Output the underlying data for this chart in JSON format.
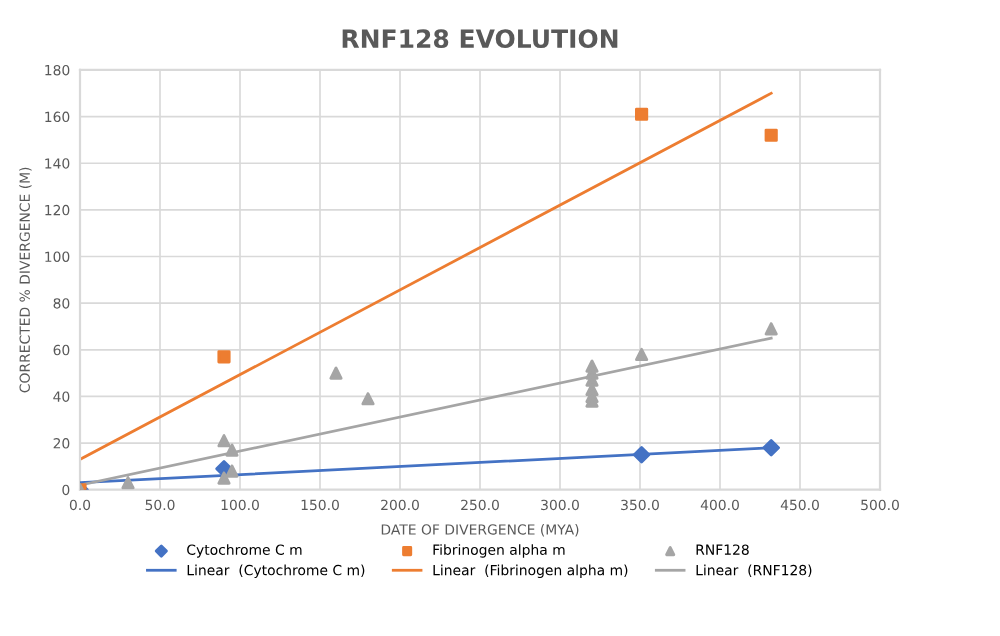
{
  "chart_data": {
    "type": "scatter",
    "title": "RNF128 EVOLUTION",
    "xlabel": "DATE OF DIVERGENCE (MYA)",
    "ylabel": "CORRECTED % DIVERGENCE (M)",
    "series": [
      {
        "name": "Cytochrome C m",
        "color": "#4472c4",
        "marker": "diamond",
        "x": [
          0,
          90,
          351,
          432
        ],
        "values": [
          0,
          9,
          15,
          18
        ]
      },
      {
        "name": "Linear  (Cytochrome C m)",
        "type": "line",
        "color": "#4472c4",
        "x": [
          0,
          432
        ],
        "values": [
          3,
          18
        ]
      },
      {
        "name": "Fibrinogen alpha m",
        "color": "#ed7d31",
        "marker": "square",
        "x": [
          0,
          90,
          351,
          432
        ],
        "values": [
          0,
          57,
          161,
          152
        ]
      },
      {
        "name": "Linear  (Fibrinogen alpha m)",
        "type": "line",
        "color": "#ed7d31",
        "x": [
          0,
          432
        ],
        "values": [
          13,
          170
        ]
      },
      {
        "name": "RNF128",
        "color": "#a5a5a5",
        "marker": "triangle",
        "x": [
          0,
          30,
          90,
          90,
          95,
          95,
          160,
          180,
          320,
          320,
          320,
          320,
          320,
          320,
          351,
          432
        ],
        "values": [
          0,
          3,
          21,
          5,
          17,
          8,
          50,
          39,
          53,
          50,
          47,
          43,
          40,
          38,
          58,
          69
        ]
      },
      {
        "name": "Linear  (RNF128)",
        "type": "line",
        "color": "#a5a5a5",
        "x": [
          0,
          432
        ],
        "values": [
          2,
          65
        ]
      }
    ],
    "xlim": [
      0,
      500
    ],
    "xticks": [
      {
        "value": 0,
        "label": "0.0"
      },
      {
        "value": 50,
        "label": "50.0"
      },
      {
        "value": 100,
        "label": "100.0"
      },
      {
        "value": 150,
        "label": "150.0"
      },
      {
        "value": 200,
        "label": "200.0"
      },
      {
        "value": 250,
        "label": "250.0"
      },
      {
        "value": 300,
        "label": "300.0"
      },
      {
        "value": 350,
        "label": "350.0"
      },
      {
        "value": 400,
        "label": "400.0"
      },
      {
        "value": 450,
        "label": "450.0"
      },
      {
        "value": 500,
        "label": "500.0"
      }
    ],
    "ylim": [
      0,
      180
    ],
    "yticks": [
      0,
      20,
      40,
      60,
      80,
      100,
      120,
      140,
      160,
      180
    ],
    "grid": true,
    "legend": "bottom"
  }
}
